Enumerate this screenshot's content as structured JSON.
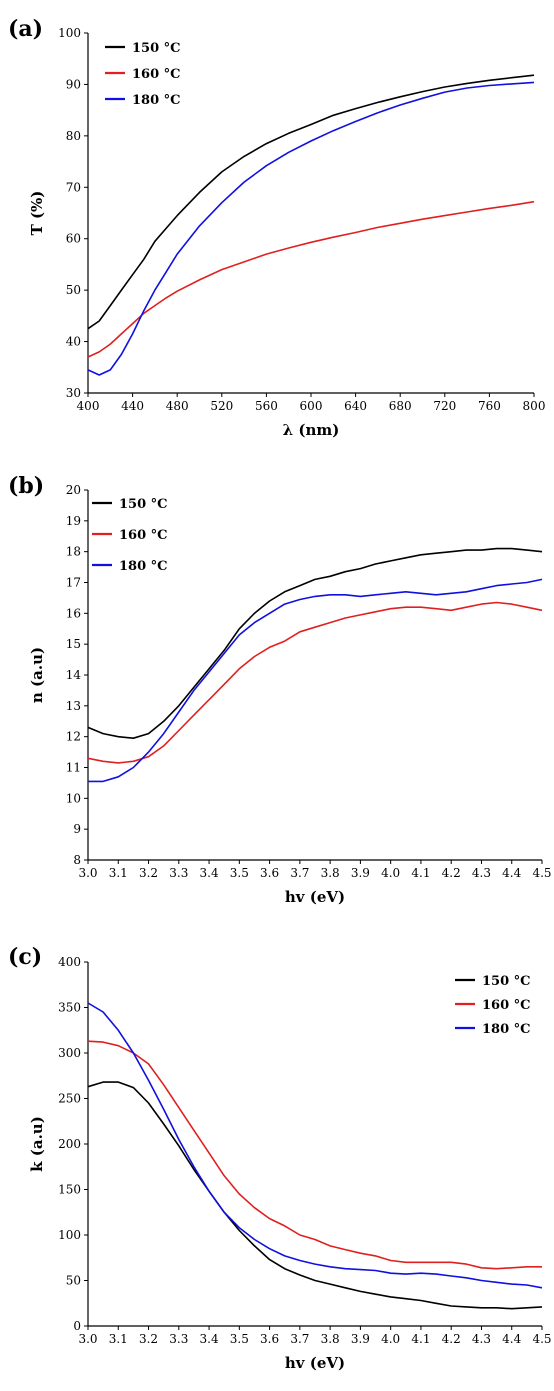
{
  "chart_data": [
    {
      "type": "line",
      "panel_label": "(a)",
      "title": "",
      "xlabel": "λ (nm)",
      "ylabel": "T (%)",
      "xlim": [
        400,
        800
      ],
      "ylim": [
        30,
        100
      ],
      "xticks": [
        400,
        440,
        480,
        520,
        560,
        600,
        640,
        680,
        720,
        760,
        800
      ],
      "yticks": [
        30,
        40,
        50,
        60,
        70,
        80,
        90,
        100
      ],
      "legend_position": "top-left",
      "x": [
        400,
        410,
        420,
        430,
        440,
        450,
        460,
        470,
        480,
        500,
        520,
        540,
        560,
        580,
        600,
        620,
        640,
        660,
        680,
        700,
        720,
        740,
        760,
        780,
        800
      ],
      "series": [
        {
          "name": "150 °C",
          "color": "#000000",
          "values": [
            42.5,
            44,
            47,
            50,
            53,
            56,
            59.5,
            62,
            64.5,
            69,
            73,
            76,
            78.5,
            80.5,
            82.2,
            84,
            85.3,
            86.5,
            87.6,
            88.6,
            89.5,
            90.2,
            90.8,
            91.3,
            91.8
          ]
        },
        {
          "name": "160 °C",
          "color": "#e02020",
          "values": [
            37,
            38,
            39.5,
            41.5,
            43.5,
            45.5,
            47,
            48.5,
            49.8,
            52,
            54,
            55.5,
            57,
            58.2,
            59.3,
            60.3,
            61.2,
            62.2,
            63,
            63.8,
            64.5,
            65.2,
            65.9,
            66.5,
            67.2
          ]
        },
        {
          "name": "180 °C",
          "color": "#1010e0",
          "values": [
            34.5,
            33.5,
            34.5,
            37.5,
            41.5,
            46,
            50,
            53.5,
            57,
            62.5,
            67,
            71,
            74.2,
            76.8,
            79,
            81,
            82.8,
            84.5,
            86,
            87.3,
            88.5,
            89.3,
            89.8,
            90.1,
            90.4
          ]
        }
      ]
    },
    {
      "type": "line",
      "panel_label": "(b)",
      "title": "",
      "xlabel": "hv (eV)",
      "ylabel": "n (a.u)",
      "xlim": [
        3.0,
        4.5
      ],
      "ylim": [
        8,
        20
      ],
      "xticks": [
        3.0,
        3.1,
        3.2,
        3.3,
        3.4,
        3.5,
        3.6,
        3.7,
        3.8,
        3.9,
        4.0,
        4.1,
        4.2,
        4.3,
        4.4,
        4.5
      ],
      "yticks": [
        8,
        9,
        10,
        11,
        12,
        13,
        14,
        15,
        16,
        17,
        18,
        19,
        20
      ],
      "legend_position": "top-left",
      "x": [
        3.0,
        3.05,
        3.1,
        3.15,
        3.2,
        3.25,
        3.3,
        3.35,
        3.4,
        3.45,
        3.5,
        3.55,
        3.6,
        3.65,
        3.7,
        3.75,
        3.8,
        3.85,
        3.9,
        3.95,
        4.0,
        4.05,
        4.1,
        4.15,
        4.2,
        4.25,
        4.3,
        4.35,
        4.4,
        4.45,
        4.5
      ],
      "series": [
        {
          "name": "150 °C",
          "color": "#000000",
          "values": [
            12.3,
            12.1,
            12.0,
            11.95,
            12.1,
            12.5,
            13.0,
            13.6,
            14.2,
            14.8,
            15.5,
            16.0,
            16.4,
            16.7,
            16.9,
            17.1,
            17.2,
            17.35,
            17.45,
            17.6,
            17.7,
            17.8,
            17.9,
            17.95,
            18.0,
            18.05,
            18.05,
            18.1,
            18.1,
            18.05,
            18.0
          ]
        },
        {
          "name": "160 °C",
          "color": "#e02020",
          "values": [
            11.3,
            11.2,
            11.15,
            11.2,
            11.35,
            11.7,
            12.2,
            12.7,
            13.2,
            13.7,
            14.2,
            14.6,
            14.9,
            15.1,
            15.4,
            15.55,
            15.7,
            15.85,
            15.95,
            16.05,
            16.15,
            16.2,
            16.2,
            16.15,
            16.1,
            16.2,
            16.3,
            16.35,
            16.3,
            16.2,
            16.1
          ]
        },
        {
          "name": "180 °C",
          "color": "#1010e0",
          "values": [
            10.55,
            10.55,
            10.7,
            11.0,
            11.5,
            12.1,
            12.8,
            13.5,
            14.1,
            14.7,
            15.3,
            15.7,
            16.0,
            16.3,
            16.45,
            16.55,
            16.6,
            16.6,
            16.55,
            16.6,
            16.65,
            16.7,
            16.65,
            16.6,
            16.65,
            16.7,
            16.8,
            16.9,
            16.95,
            17.0,
            17.1
          ]
        }
      ]
    },
    {
      "type": "line",
      "panel_label": "(c)",
      "title": "",
      "xlabel": "hv (eV)",
      "ylabel": "k (a.u)",
      "xlim": [
        3.0,
        4.5
      ],
      "ylim": [
        0,
        400
      ],
      "xticks": [
        3.0,
        3.1,
        3.2,
        3.3,
        3.4,
        3.5,
        3.6,
        3.7,
        3.8,
        3.9,
        4.0,
        4.1,
        4.2,
        4.3,
        4.4,
        4.5
      ],
      "yticks": [
        0,
        50,
        100,
        150,
        200,
        250,
        300,
        350,
        400
      ],
      "legend_position": "top-right",
      "x": [
        3.0,
        3.05,
        3.1,
        3.15,
        3.2,
        3.25,
        3.3,
        3.35,
        3.4,
        3.45,
        3.5,
        3.55,
        3.6,
        3.65,
        3.7,
        3.75,
        3.8,
        3.85,
        3.9,
        3.95,
        4.0,
        4.05,
        4.1,
        4.15,
        4.2,
        4.25,
        4.3,
        4.35,
        4.4,
        4.45,
        4.5
      ],
      "series": [
        {
          "name": "150 °C",
          "color": "#000000",
          "values": [
            263,
            268,
            268,
            262,
            245,
            222,
            198,
            172,
            148,
            125,
            105,
            88,
            73,
            63,
            56,
            50,
            46,
            42,
            38,
            35,
            32,
            30,
            28,
            25,
            22,
            21,
            20,
            20,
            19,
            20,
            21
          ]
        },
        {
          "name": "160 °C",
          "color": "#e02020",
          "values": [
            313,
            312,
            308,
            300,
            288,
            265,
            240,
            215,
            190,
            165,
            145,
            130,
            118,
            110,
            100,
            95,
            88,
            84,
            80,
            77,
            72,
            70,
            70,
            70,
            70,
            68,
            64,
            63,
            64,
            65,
            65
          ]
        },
        {
          "name": "180 °C",
          "color": "#1010e0",
          "values": [
            355,
            345,
            325,
            300,
            270,
            238,
            205,
            175,
            148,
            125,
            108,
            95,
            85,
            77,
            72,
            68,
            65,
            63,
            62,
            61,
            58,
            57,
            58,
            57,
            55,
            53,
            50,
            48,
            46,
            45,
            42
          ]
        }
      ]
    }
  ]
}
